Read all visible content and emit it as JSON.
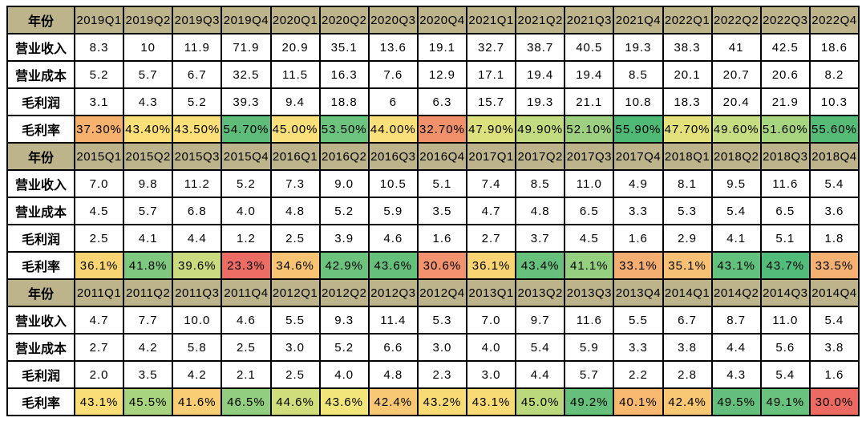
{
  "colors": {
    "header_bg": "#bdb48c",
    "grid_border": "#000000",
    "cell_bg": "#ffffff",
    "scale_min_red": "#ed6a62",
    "scale_mid_yellow": "#fbe37a",
    "scale_max_green": "#4fba76"
  },
  "chart_data": {
    "type": "table",
    "title": "",
    "row_labels": {
      "year": "年份",
      "revenue": "营业收入",
      "cost": "营业成本",
      "profit": "毛利润",
      "margin": "毛利率"
    },
    "blocks": [
      {
        "quarters": [
          "2019Q1",
          "2019Q2",
          "2019Q3",
          "2019Q4",
          "2020Q1",
          "2020Q2",
          "2020Q3",
          "2020Q4",
          "2021Q1",
          "2021Q2",
          "2021Q3",
          "2021Q4",
          "2022Q1",
          "2022Q2",
          "2022Q3",
          "2022Q4"
        ],
        "revenue": [
          "8.3",
          "10",
          "11.9",
          "71.9",
          "20.9",
          "35.1",
          "13.6",
          "19.1",
          "32.7",
          "38.7",
          "40.5",
          "19.3",
          "38.3",
          "41",
          "42.5",
          "18.6"
        ],
        "cost": [
          "5.2",
          "5.7",
          "6.7",
          "32.5",
          "11.5",
          "16.3",
          "7.6",
          "12.9",
          "17.1",
          "19.4",
          "19.4",
          "8.5",
          "20.1",
          "20.7",
          "20.6",
          "8.2"
        ],
        "profit": [
          "3.1",
          "4.3",
          "5.2",
          "39.3",
          "9.4",
          "18.8",
          "6",
          "6.3",
          "15.7",
          "19.3",
          "21.1",
          "10.8",
          "18.3",
          "20.4",
          "21.9",
          "10.3"
        ],
        "margin": [
          "37.30%",
          "43.40%",
          "43.50%",
          "54.70%",
          "45.00%",
          "53.50%",
          "44.00%",
          "32.70%",
          "47.90%",
          "49.90%",
          "52.10%",
          "55.90%",
          "47.70%",
          "49.60%",
          "51.60%",
          "55.60%"
        ],
        "margin_colors": [
          "#f6b16e",
          "#fbe07a",
          "#fbe07a",
          "#5ebd7a",
          "#f9e07a",
          "#6dc47e",
          "#fae07a",
          "#f0916c",
          "#dce07d",
          "#c4dc81",
          "#9dd181",
          "#4fba76",
          "#e2e17c",
          "#c7dd82",
          "#a7d580",
          "#57bb78"
        ]
      },
      {
        "quarters": [
          "2015Q1",
          "2015Q2",
          "2015Q3",
          "2015Q4",
          "2016Q1",
          "2016Q2",
          "2016Q3",
          "2016Q4",
          "2017Q1",
          "2017Q2",
          "2017Q3",
          "2017Q4",
          "2018Q1",
          "2018Q2",
          "2018Q3",
          "2018Q4"
        ],
        "revenue": [
          "7.0",
          "9.8",
          "11.2",
          "5.2",
          "7.3",
          "9.0",
          "10.5",
          "5.1",
          "7.4",
          "8.5",
          "11.0",
          "4.9",
          "8.1",
          "9.5",
          "11.6",
          "5.4"
        ],
        "cost": [
          "4.5",
          "5.7",
          "6.8",
          "4.0",
          "4.8",
          "5.2",
          "5.9",
          "3.5",
          "4.7",
          "4.8",
          "6.5",
          "3.3",
          "5.3",
          "5.4",
          "6.5",
          "3.6"
        ],
        "profit": [
          "2.5",
          "4.1",
          "4.4",
          "1.2",
          "2.5",
          "3.9",
          "4.6",
          "1.6",
          "2.7",
          "3.7",
          "4.5",
          "1.6",
          "2.9",
          "4.1",
          "5.1",
          "1.8"
        ],
        "margin": [
          "36.1%",
          "41.8%",
          "39.6%",
          "23.3%",
          "34.6%",
          "42.9%",
          "43.6%",
          "30.6%",
          "36.1%",
          "43.4%",
          "41.1%",
          "33.1%",
          "35.1%",
          "43.1%",
          "43.7%",
          "33.5%"
        ],
        "margin_colors": [
          "#f8d472",
          "#7fc87f",
          "#c9db7e",
          "#ed6c64",
          "#f8c474",
          "#6cc37d",
          "#64c07b",
          "#f2926e",
          "#f8d472",
          "#67c17c",
          "#95cf80",
          "#f5ae72",
          "#f7c175",
          "#62c17c",
          "#52bd7b",
          "#f5b172"
        ]
      },
      {
        "quarters": [
          "2011Q1",
          "2011Q2",
          "2011Q3",
          "2011Q4",
          "2012Q1",
          "2012Q2",
          "2012Q3",
          "2012Q4",
          "2013Q1",
          "2013Q2",
          "2013Q3",
          "2013Q4",
          "2014Q1",
          "2014Q2",
          "2014Q3",
          "2014Q4"
        ],
        "revenue": [
          "4.7",
          "7.7",
          "10.0",
          "4.6",
          "5.5",
          "9.3",
          "11.4",
          "5.3",
          "7.0",
          "9.7",
          "11.6",
          "5.5",
          "6.7",
          "8.7",
          "11.0",
          "5.4"
        ],
        "cost": [
          "2.7",
          "4.2",
          "5.8",
          "2.5",
          "3.0",
          "5.2",
          "6.6",
          "3.0",
          "4.0",
          "5.4",
          "5.9",
          "3.3",
          "3.8",
          "4.4",
          "5.6",
          "3.8"
        ],
        "profit": [
          "2.0",
          "3.5",
          "4.2",
          "2.1",
          "2.5",
          "4.0",
          "4.8",
          "2.3",
          "3.0",
          "4.4",
          "5.7",
          "2.2",
          "2.8",
          "4.3",
          "5.4",
          "1.6"
        ],
        "margin": [
          "43.1%",
          "45.5%",
          "41.6%",
          "46.5%",
          "44.6%",
          "43.6%",
          "42.4%",
          "43.2%",
          "43.1%",
          "45.0%",
          "49.2%",
          "40.1%",
          "42.4%",
          "49.5%",
          "49.1%",
          "30.0%"
        ],
        "margin_colors": [
          "#f9dd76",
          "#a8d47f",
          "#f8cd73",
          "#92ce7f",
          "#d0dd7b",
          "#f2e67b",
          "#f8c774",
          "#f9db75",
          "#f9db75",
          "#bcd87d",
          "#66c07b",
          "#f7b870",
          "#f8c774",
          "#63bf7b",
          "#68c17c",
          "#ed6a62"
        ]
      }
    ]
  }
}
